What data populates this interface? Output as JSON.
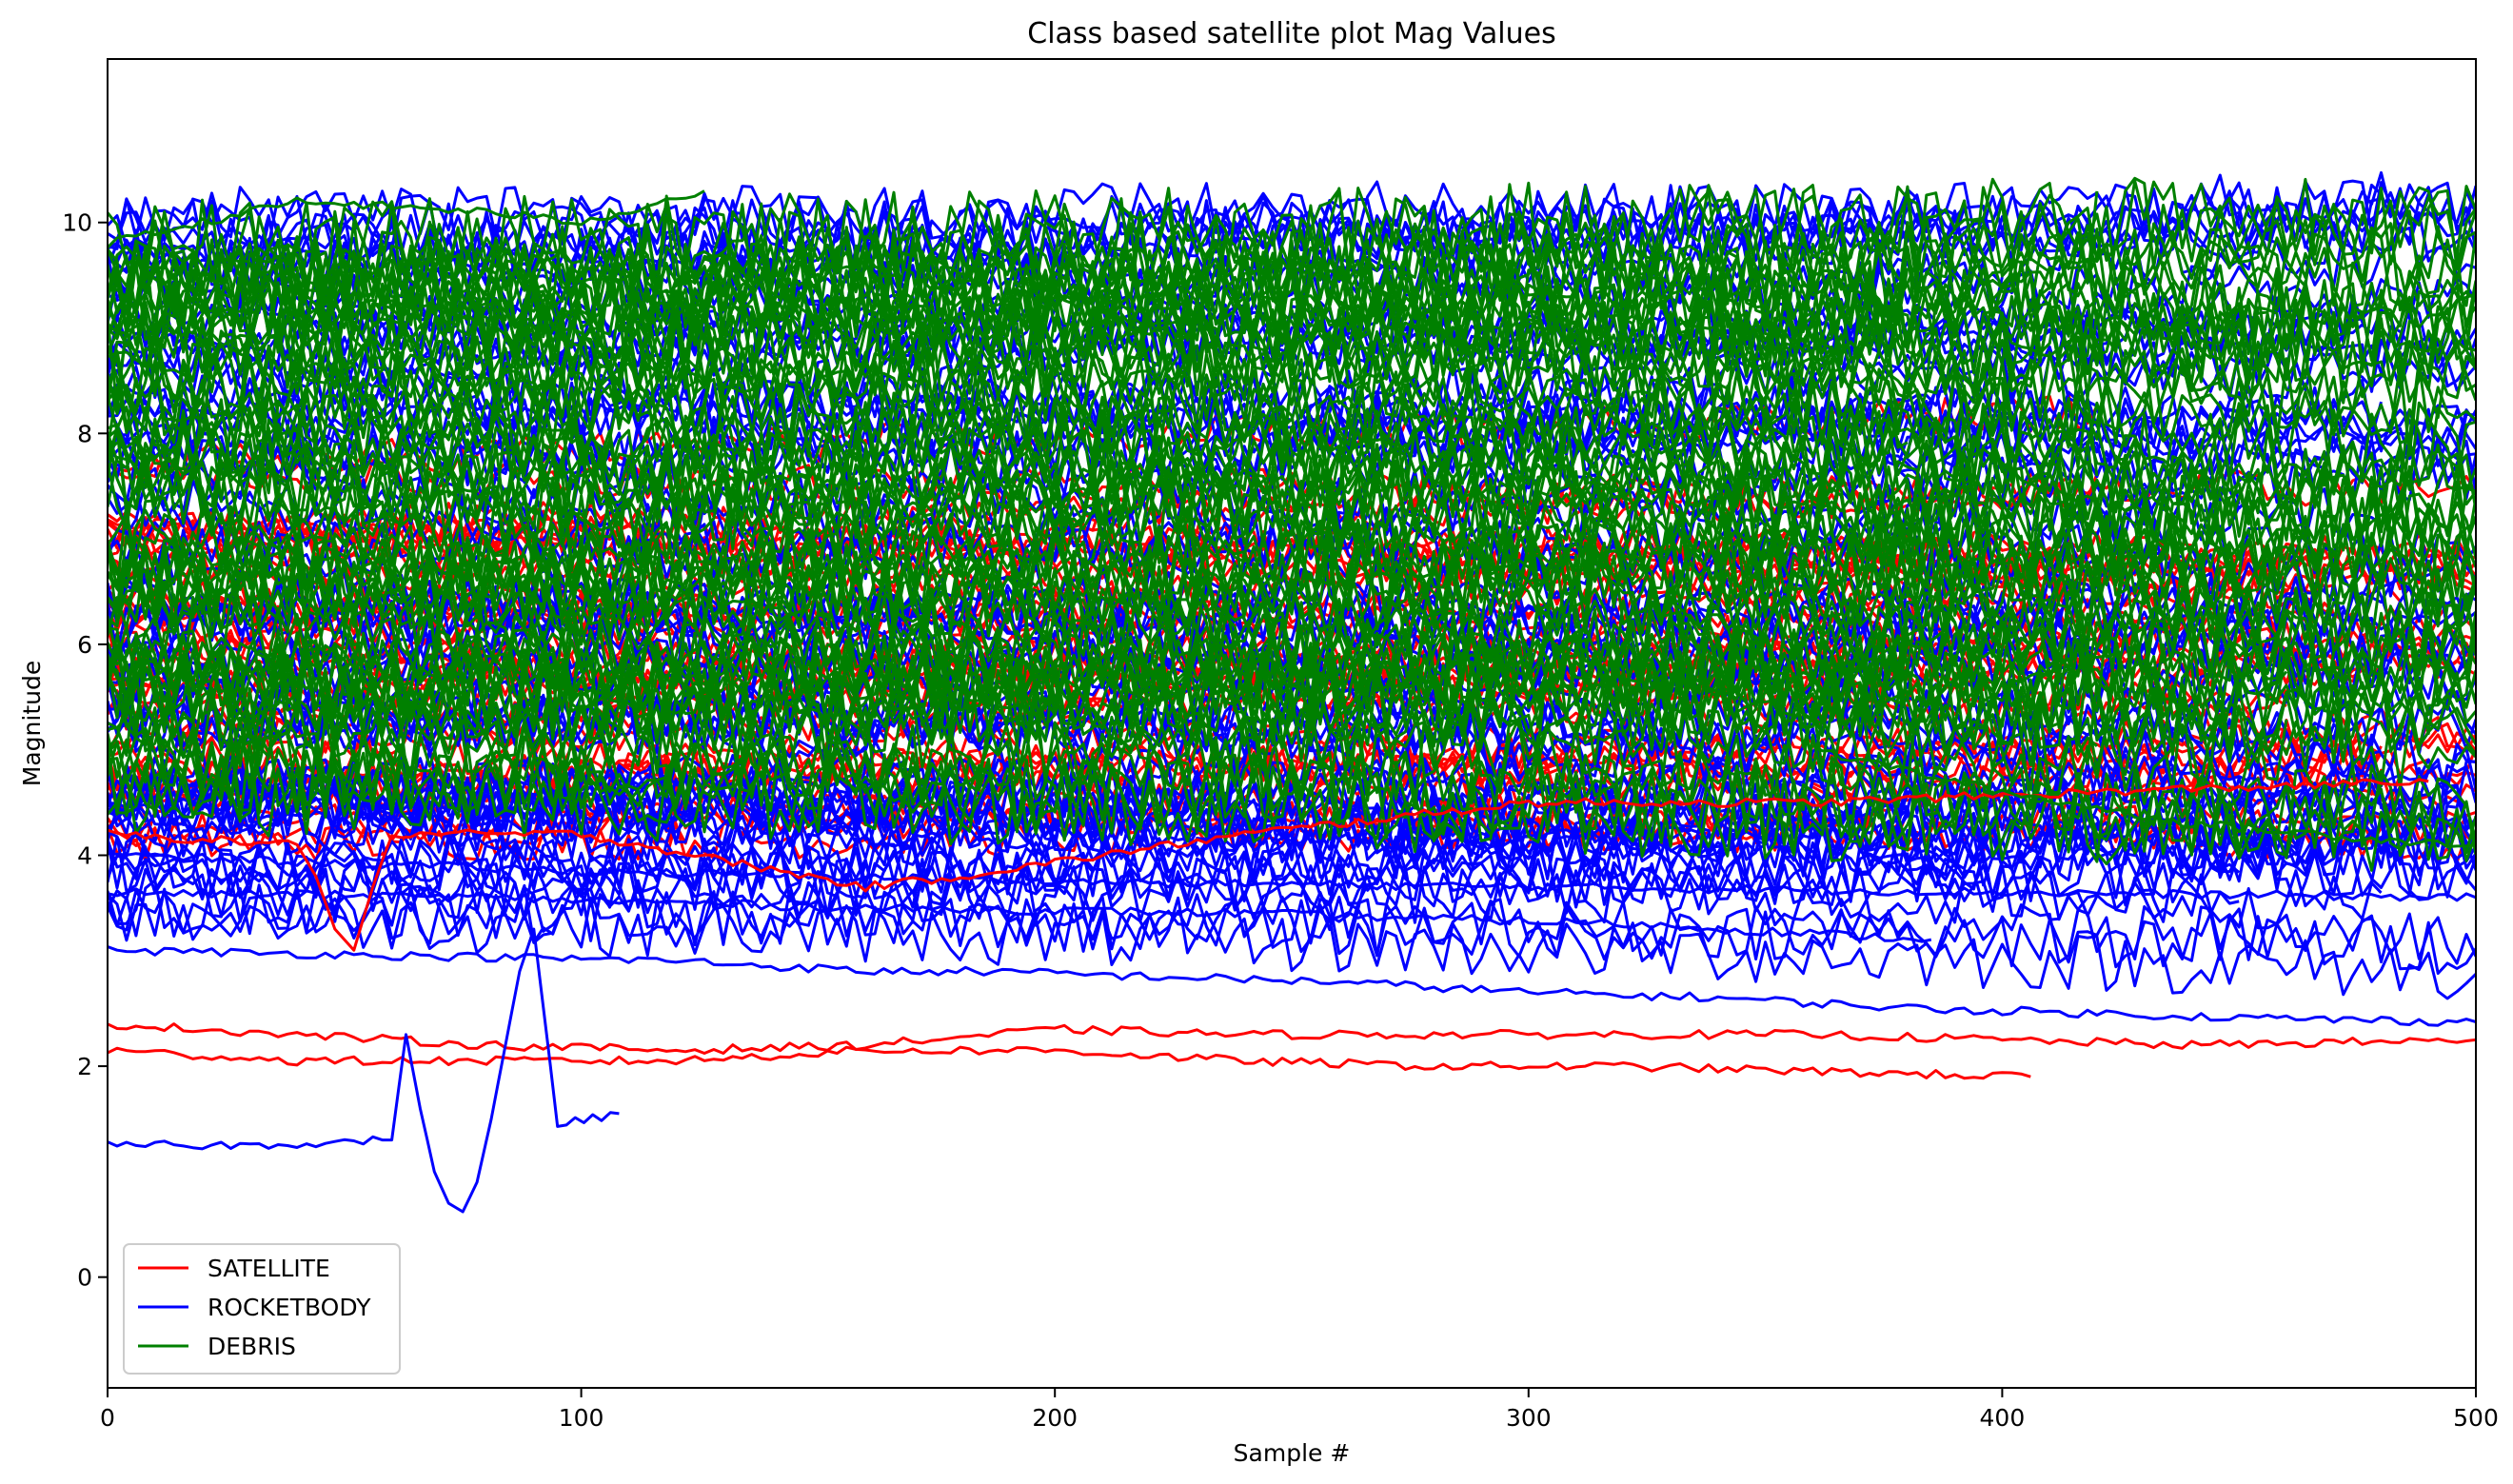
{
  "chart_data": {
    "type": "line",
    "title": "Class based satellite plot Mag Values",
    "xlabel": "Sample #",
    "ylabel": "Magnitude",
    "xlim": [
      0,
      500
    ],
    "ylim": [
      -1.05,
      11.55
    ],
    "x_ticks": [
      0,
      100,
      200,
      300,
      400,
      500
    ],
    "y_ticks": [
      0,
      2,
      4,
      6,
      8,
      10
    ],
    "grid": false,
    "legend_position": "lower-left",
    "legend": [
      {
        "name": "SATELLITE",
        "color": "#ff0000"
      },
      {
        "name": "ROCKETBODY",
        "color": "#0000ff"
      },
      {
        "name": "DEBRIS",
        "color": "#008000"
      }
    ],
    "series": [
      {
        "name": "SATELLITE",
        "color": "#ff0000",
        "mode": "bulk",
        "count": 40,
        "lengths": [
          500,
          480,
          460,
          500,
          420,
          500,
          380,
          500,
          470,
          500
        ],
        "bands": [
          [
            4.1,
            4.7
          ],
          [
            4.8,
            5.6
          ],
          [
            5.6,
            6.4
          ],
          [
            6.2,
            7.2
          ],
          [
            6.8,
            7.8
          ]
        ],
        "noise": 0.18
      },
      {
        "name": "ROCKETBODY",
        "color": "#0000ff",
        "mode": "bulk",
        "count": 70,
        "lengths": [
          500,
          500,
          480,
          500,
          450,
          500,
          500,
          400,
          500,
          500
        ],
        "bands": [
          [
            3.4,
            4.0
          ],
          [
            3.9,
            4.6
          ],
          [
            4.4,
            5.4
          ],
          [
            5.2,
            6.4
          ],
          [
            6.3,
            7.8
          ],
          [
            7.6,
            8.8
          ],
          [
            8.6,
            9.6
          ],
          [
            9.2,
            10.1
          ]
        ],
        "noise": 0.28
      },
      {
        "name": "DEBRIS",
        "color": "#008000",
        "mode": "bulk",
        "count": 70,
        "lengths": [
          500,
          500,
          500,
          420,
          500,
          380,
          500,
          500,
          460,
          500
        ],
        "bands": [
          [
            4.6,
            5.6
          ],
          [
            5.4,
            6.6
          ],
          [
            6.4,
            7.6
          ],
          [
            7.4,
            8.6
          ],
          [
            8.4,
            9.4
          ],
          [
            9.0,
            9.8
          ]
        ],
        "noise": 0.45
      },
      {
        "name": "SATELLITE",
        "color": "#ff0000",
        "mode": "line",
        "x": [
          0,
          40,
          80,
          120,
          160,
          200,
          240,
          280,
          320,
          360,
          400,
          440,
          500
        ],
        "y": [
          2.4,
          2.3,
          2.2,
          2.15,
          2.2,
          2.35,
          2.3,
          2.3,
          2.3,
          2.3,
          2.25,
          2.2,
          2.25
        ]
      },
      {
        "name": "SATELLITE",
        "color": "#ff0000",
        "mode": "line",
        "x": [
          0,
          40,
          80,
          120,
          160,
          200,
          240,
          280,
          320,
          360,
          406
        ],
        "y": [
          2.15,
          2.05,
          2.05,
          2.05,
          2.15,
          2.15,
          2.05,
          2.0,
          2.0,
          1.95,
          1.9
        ]
      },
      {
        "name": "ROCKETBODY",
        "color": "#0000ff",
        "mode": "line",
        "x": [
          0,
          30,
          60,
          63,
          66,
          69,
          72,
          75,
          78,
          81,
          84,
          87,
          90,
          95,
          108
        ],
        "y": [
          1.25,
          1.25,
          1.3,
          2.3,
          1.6,
          1.0,
          0.7,
          0.62,
          0.9,
          1.5,
          2.2,
          2.9,
          3.3,
          1.45,
          1.55
        ]
      },
      {
        "name": "ROCKETBODY",
        "color": "#0000ff",
        "mode": "line",
        "x": [
          0,
          60,
          120,
          160,
          185,
          220,
          260,
          300,
          340,
          380,
          420,
          460,
          500
        ],
        "y": [
          3.1,
          3.05,
          3.0,
          2.9,
          2.9,
          2.85,
          2.8,
          2.7,
          2.65,
          2.55,
          2.5,
          2.45,
          2.42
        ]
      },
      {
        "name": "ROCKETBODY",
        "color": "#0000ff",
        "mode": "line",
        "x": [
          0,
          80,
          160,
          240,
          320,
          385
        ],
        "y": [
          3.65,
          3.6,
          3.5,
          3.45,
          3.35,
          3.2
        ]
      },
      {
        "name": "ROCKETBODY",
        "color": "#0000ff",
        "mode": "line",
        "x": [
          0,
          100,
          200,
          300,
          400,
          500
        ],
        "y": [
          4.0,
          3.85,
          3.75,
          3.7,
          3.65,
          3.6
        ]
      },
      {
        "name": "SATELLITE",
        "color": "#ff0000",
        "mode": "line",
        "x": [
          0,
          40,
          44,
          48,
          52,
          56,
          60,
          100,
          160,
          180,
          240,
          300,
          360,
          420,
          490
        ],
        "y": [
          4.2,
          4.1,
          3.8,
          3.3,
          3.1,
          3.7,
          4.2,
          4.2,
          3.7,
          3.8,
          4.2,
          4.5,
          4.5,
          4.6,
          4.7
        ]
      },
      {
        "name": "DEBRIS",
        "color": "#008000",
        "mode": "line",
        "x": [
          0,
          40,
          80,
          100,
          126
        ],
        "y": [
          9.8,
          10.2,
          10.1,
          10.0,
          10.3
        ]
      },
      {
        "name": "DEBRIS",
        "color": "#008000",
        "mode": "line",
        "x": [
          360,
          400,
          440,
          480,
          500
        ],
        "y": [
          5.0,
          4.6,
          4.3,
          4.15,
          4.1
        ]
      }
    ]
  }
}
